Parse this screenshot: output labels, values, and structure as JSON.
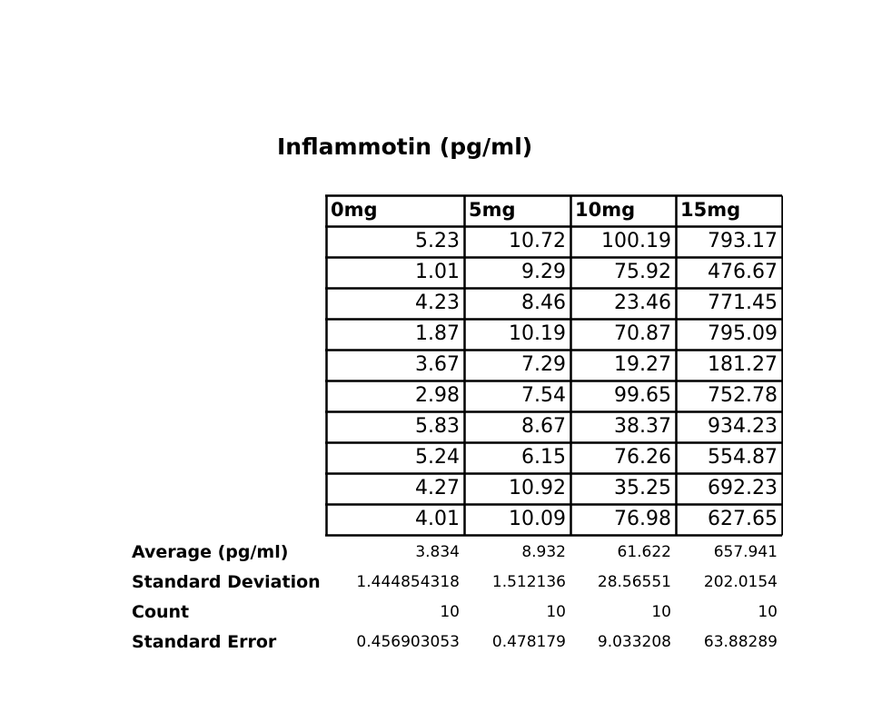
{
  "title": "Inflammotin (pg/ml)",
  "table": {
    "headers": [
      "0mg",
      "5mg",
      "10mg",
      "15mg"
    ],
    "rows": [
      [
        "5.23",
        "10.72",
        "100.19",
        "793.17"
      ],
      [
        "1.01",
        "9.29",
        "75.92",
        "476.67"
      ],
      [
        "4.23",
        "8.46",
        "23.46",
        "771.45"
      ],
      [
        "1.87",
        "10.19",
        "70.87",
        "795.09"
      ],
      [
        "3.67",
        "7.29",
        "19.27",
        "181.27"
      ],
      [
        "2.98",
        "7.54",
        "99.65",
        "752.78"
      ],
      [
        "5.83",
        "8.67",
        "38.37",
        "934.23"
      ],
      [
        "5.24",
        "6.15",
        "76.26",
        "554.87"
      ],
      [
        "4.27",
        "10.92",
        "35.25",
        "692.23"
      ],
      [
        "4.01",
        "10.09",
        "76.98",
        "627.65"
      ]
    ]
  },
  "summary": [
    {
      "label": "Average (pg/ml)",
      "values": [
        "3.834",
        "8.932",
        "61.622",
        "657.941"
      ]
    },
    {
      "label": "Standard Deviation",
      "values": [
        "1.444854318",
        "1.512136",
        "28.56551",
        "202.0154"
      ]
    },
    {
      "label": "Count",
      "values": [
        "10",
        "10",
        "10",
        "10"
      ]
    },
    {
      "label": "Standard Error",
      "values": [
        "0.456903053",
        "0.478179",
        "9.033208",
        "63.88289"
      ]
    }
  ]
}
